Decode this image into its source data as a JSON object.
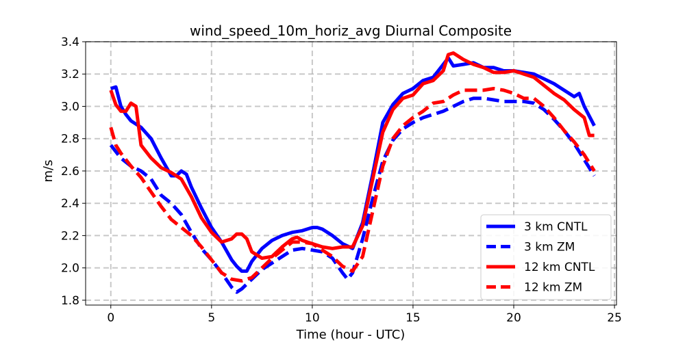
{
  "chart_data": {
    "type": "line",
    "title": "wind_speed_10m_horiz_avg Diurnal Composite",
    "xlabel": "Time (hour - UTC)",
    "ylabel": "m/s",
    "xlim": [
      -1.25,
      25.1
    ],
    "ylim": [
      1.77,
      3.4
    ],
    "xticks": [
      0,
      5,
      10,
      15,
      20,
      25
    ],
    "yticks": [
      1.8,
      2.0,
      2.2,
      2.4,
      2.6,
      2.8,
      3.0,
      3.2,
      3.4
    ],
    "xtick_labels": [
      "0",
      "5",
      "10",
      "15",
      "20",
      "25"
    ],
    "ytick_labels": [
      "1.8",
      "2.0",
      "2.2",
      "2.4",
      "2.6",
      "2.8",
      "3.0",
      "3.2",
      "3.4"
    ],
    "grid": true,
    "legend_position": "bottom-right",
    "colors": {
      "blue": "#0000ff",
      "red": "#ff0000",
      "grid": "#b0b0b0"
    },
    "series": [
      {
        "name": "3 km CNTL",
        "color": "#0000ff",
        "style": "solid",
        "x": [
          0,
          0.25,
          0.5,
          0.75,
          1,
          1.5,
          2,
          2.5,
          3,
          3.25,
          3.5,
          3.75,
          4,
          4.5,
          5,
          5.5,
          6,
          6.25,
          6.5,
          6.75,
          7,
          7.5,
          8,
          8.5,
          9,
          9.5,
          10,
          10.25,
          10.5,
          11,
          11.5,
          12,
          12.5,
          13,
          13.5,
          14,
          14.5,
          15,
          15.5,
          16,
          16.5,
          16.75,
          17,
          17.5,
          18,
          18.5,
          19,
          19.5,
          20,
          20.5,
          21,
          21.5,
          22,
          22.5,
          23,
          23.25,
          23.5,
          24
        ],
        "values": [
          3.11,
          3.12,
          3.0,
          2.95,
          2.91,
          2.87,
          2.8,
          2.68,
          2.57,
          2.57,
          2.6,
          2.58,
          2.5,
          2.37,
          2.25,
          2.16,
          2.05,
          2.01,
          1.98,
          1.98,
          2.04,
          2.12,
          2.17,
          2.2,
          2.22,
          2.23,
          2.25,
          2.25,
          2.24,
          2.2,
          2.15,
          2.12,
          2.28,
          2.58,
          2.9,
          3.01,
          3.08,
          3.11,
          3.16,
          3.18,
          3.26,
          3.3,
          3.25,
          3.26,
          3.27,
          3.24,
          3.24,
          3.22,
          3.22,
          3.21,
          3.2,
          3.17,
          3.14,
          3.1,
          3.06,
          3.08,
          3.0,
          2.88
        ]
      },
      {
        "name": "3 km ZM",
        "color": "#0000ff",
        "style": "dashed",
        "x": [
          0,
          0.5,
          1,
          1.5,
          2,
          2.5,
          3,
          3.5,
          4,
          4.5,
          5,
          5.5,
          6,
          6.25,
          6.5,
          7,
          7.5,
          8,
          8.5,
          9,
          9.5,
          10,
          10.5,
          11,
          11.5,
          11.75,
          12,
          12.5,
          13,
          13.5,
          14,
          14.5,
          15,
          15.5,
          16,
          16.5,
          17,
          17.5,
          18,
          18.5,
          19,
          19.5,
          20,
          20.5,
          21,
          21.5,
          22,
          22.5,
          23,
          23.5,
          24
        ],
        "values": [
          2.76,
          2.68,
          2.63,
          2.6,
          2.55,
          2.45,
          2.4,
          2.33,
          2.22,
          2.12,
          2.05,
          1.97,
          1.88,
          1.85,
          1.87,
          1.93,
          1.99,
          2.03,
          2.07,
          2.11,
          2.12,
          2.11,
          2.1,
          2.06,
          1.97,
          1.93,
          1.97,
          2.18,
          2.43,
          2.66,
          2.79,
          2.86,
          2.9,
          2.93,
          2.95,
          2.97,
          3.0,
          3.03,
          3.05,
          3.05,
          3.04,
          3.03,
          3.03,
          3.03,
          3.02,
          2.98,
          2.92,
          2.85,
          2.77,
          2.67,
          2.57
        ]
      },
      {
        "name": "12 km CNTL",
        "color": "#ff0000",
        "style": "solid",
        "x": [
          0,
          0.25,
          0.5,
          0.75,
          1,
          1.25,
          1.5,
          2,
          2.5,
          3,
          3.5,
          4,
          4.5,
          5,
          5.5,
          6,
          6.25,
          6.5,
          6.75,
          7,
          7.5,
          8,
          8.5,
          9,
          9.25,
          9.5,
          10,
          10.5,
          11,
          11.5,
          12,
          12.5,
          13,
          13.5,
          14,
          14.5,
          15,
          15.5,
          16,
          16.5,
          16.75,
          17,
          17.5,
          18,
          18.5,
          19,
          19.5,
          20,
          20.5,
          21,
          21.5,
          22,
          22.5,
          23,
          23.5,
          23.75,
          24
        ],
        "values": [
          3.1,
          3.01,
          2.97,
          2.97,
          3.02,
          3.0,
          2.76,
          2.68,
          2.62,
          2.59,
          2.55,
          2.44,
          2.31,
          2.22,
          2.16,
          2.18,
          2.21,
          2.21,
          2.18,
          2.1,
          2.06,
          2.07,
          2.13,
          2.18,
          2.19,
          2.17,
          2.15,
          2.13,
          2.12,
          2.13,
          2.13,
          2.26,
          2.55,
          2.84,
          2.98,
          3.05,
          3.07,
          3.14,
          3.16,
          3.22,
          3.32,
          3.33,
          3.29,
          3.26,
          3.24,
          3.21,
          3.21,
          3.22,
          3.2,
          3.18,
          3.13,
          3.08,
          3.04,
          2.98,
          2.93,
          2.82,
          2.82
        ]
      },
      {
        "name": "12 km ZM",
        "color": "#ff0000",
        "style": "dashed",
        "x": [
          0,
          0.25,
          0.5,
          1,
          1.5,
          2,
          2.5,
          3,
          3.5,
          4,
          4.5,
          5,
          5.5,
          6,
          6.5,
          7,
          7.5,
          8,
          8.5,
          9,
          9.5,
          10,
          10.5,
          11,
          11.5,
          12,
          12.5,
          13,
          13.5,
          14,
          14.5,
          15,
          15.5,
          16,
          16.5,
          17,
          17.5,
          18,
          18.5,
          19,
          19.5,
          20,
          20.5,
          21,
          21.5,
          22,
          22.5,
          23,
          23.5,
          24
        ],
        "values": [
          2.87,
          2.76,
          2.71,
          2.63,
          2.56,
          2.47,
          2.38,
          2.3,
          2.25,
          2.2,
          2.13,
          2.05,
          1.97,
          1.93,
          1.92,
          1.94,
          2.0,
          2.06,
          2.11,
          2.16,
          2.16,
          2.15,
          2.11,
          2.07,
          2.01,
          1.98,
          2.07,
          2.35,
          2.63,
          2.8,
          2.88,
          2.93,
          2.97,
          3.02,
          3.03,
          3.07,
          3.1,
          3.1,
          3.1,
          3.11,
          3.1,
          3.08,
          3.05,
          3.05,
          3.0,
          2.93,
          2.85,
          2.78,
          2.7,
          2.6
        ]
      }
    ]
  }
}
